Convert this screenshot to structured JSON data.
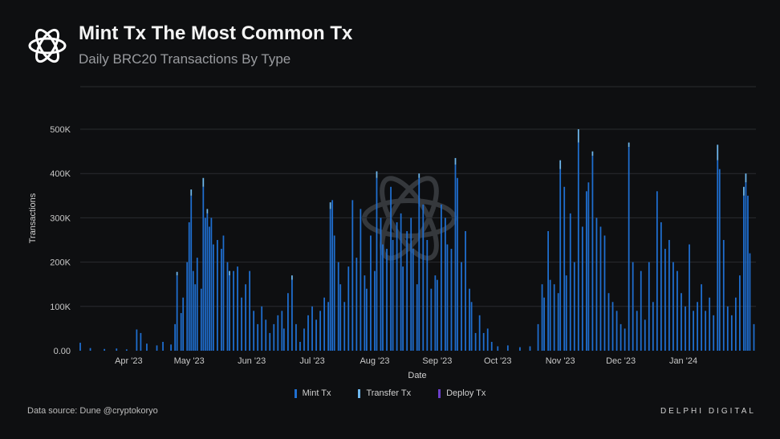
{
  "header": {
    "title": "Mint Tx The Most Common Tx",
    "subtitle": "Daily BRC20 Transactions By Type"
  },
  "footer": {
    "source": "Data source: Dune @cryptokoryo",
    "brand": "DELPHI DIGITAL"
  },
  "colors": {
    "background": "#0e0f11",
    "mint": "#1f6fd1",
    "transfer": "#6fb8ee",
    "deploy": "#6b3fc9",
    "grid": "#2a2c30",
    "text": "#c8c8c8"
  },
  "chart_data": {
    "type": "bar",
    "stacked": true,
    "xlabel": "Date",
    "ylabel": "Transactions",
    "ylim": [
      0,
      520000
    ],
    "ytick_values": [
      0,
      100000,
      200000,
      300000,
      400000,
      500000
    ],
    "ytick_labels": [
      "0.00",
      "100K",
      "200K",
      "300K",
      "400K",
      "500K"
    ],
    "xtick_labels": [
      "Apr '23",
      "May '23",
      "Jun '23",
      "Jul '23",
      "Aug '23",
      "Sep '23",
      "Oct '23",
      "Nov '23",
      "Dec '23",
      "Jan '24"
    ],
    "grid": true,
    "legend_position": "bottom",
    "x_range": [
      "2023-03-08",
      "2024-02-06"
    ],
    "series": [
      {
        "name": "Mint Tx",
        "color": "#1f6fd1",
        "points": [
          [
            "2023-03-08",
            18000
          ],
          [
            "2023-03-13",
            6000
          ],
          [
            "2023-03-20",
            4000
          ],
          [
            "2023-03-26",
            5000
          ],
          [
            "2023-03-31",
            3000
          ],
          [
            "2023-04-05",
            48000
          ],
          [
            "2023-04-07",
            40000
          ],
          [
            "2023-04-10",
            16000
          ],
          [
            "2023-04-15",
            12000
          ],
          [
            "2023-04-18",
            20000
          ],
          [
            "2023-04-22",
            14000
          ],
          [
            "2023-04-24",
            60000
          ],
          [
            "2023-04-25",
            170000
          ],
          [
            "2023-04-27",
            85000
          ],
          [
            "2023-04-28",
            120000
          ],
          [
            "2023-04-30",
            200000
          ],
          [
            "2023-05-01",
            290000
          ],
          [
            "2023-05-02",
            350000
          ],
          [
            "2023-05-03",
            180000
          ],
          [
            "2023-05-04",
            150000
          ],
          [
            "2023-05-05",
            210000
          ],
          [
            "2023-05-07",
            140000
          ],
          [
            "2023-05-08",
            370000
          ],
          [
            "2023-05-09",
            300000
          ],
          [
            "2023-05-10",
            310000
          ],
          [
            "2023-05-11",
            280000
          ],
          [
            "2023-05-12",
            300000
          ],
          [
            "2023-05-13",
            240000
          ],
          [
            "2023-05-15",
            250000
          ],
          [
            "2023-05-17",
            230000
          ],
          [
            "2023-05-18",
            260000
          ],
          [
            "2023-05-20",
            200000
          ],
          [
            "2023-05-21",
            170000
          ],
          [
            "2023-05-23",
            180000
          ],
          [
            "2023-05-25",
            190000
          ],
          [
            "2023-05-27",
            120000
          ],
          [
            "2023-05-29",
            150000
          ],
          [
            "2023-05-31",
            180000
          ],
          [
            "2023-06-02",
            90000
          ],
          [
            "2023-06-04",
            60000
          ],
          [
            "2023-06-06",
            100000
          ],
          [
            "2023-06-08",
            70000
          ],
          [
            "2023-06-10",
            40000
          ],
          [
            "2023-06-12",
            60000
          ],
          [
            "2023-06-14",
            80000
          ],
          [
            "2023-06-16",
            90000
          ],
          [
            "2023-06-17",
            50000
          ],
          [
            "2023-06-19",
            130000
          ],
          [
            "2023-06-21",
            160000
          ],
          [
            "2023-06-23",
            60000
          ],
          [
            "2023-06-25",
            20000
          ],
          [
            "2023-06-27",
            50000
          ],
          [
            "2023-06-29",
            80000
          ],
          [
            "2023-07-01",
            100000
          ],
          [
            "2023-07-03",
            70000
          ],
          [
            "2023-07-05",
            90000
          ],
          [
            "2023-07-07",
            120000
          ],
          [
            "2023-07-09",
            110000
          ],
          [
            "2023-07-10",
            320000
          ],
          [
            "2023-07-11",
            340000
          ],
          [
            "2023-07-12",
            260000
          ],
          [
            "2023-07-14",
            200000
          ],
          [
            "2023-07-15",
            150000
          ],
          [
            "2023-07-17",
            110000
          ],
          [
            "2023-07-19",
            190000
          ],
          [
            "2023-07-21",
            340000
          ],
          [
            "2023-07-23",
            210000
          ],
          [
            "2023-07-25",
            320000
          ],
          [
            "2023-07-27",
            170000
          ],
          [
            "2023-07-28",
            140000
          ],
          [
            "2023-07-30",
            260000
          ],
          [
            "2023-08-01",
            180000
          ],
          [
            "2023-08-02",
            390000
          ],
          [
            "2023-08-04",
            300000
          ],
          [
            "2023-08-05",
            240000
          ],
          [
            "2023-08-07",
            230000
          ],
          [
            "2023-08-09",
            370000
          ],
          [
            "2023-08-10",
            250000
          ],
          [
            "2023-08-12",
            290000
          ],
          [
            "2023-08-14",
            310000
          ],
          [
            "2023-08-15",
            190000
          ],
          [
            "2023-08-17",
            270000
          ],
          [
            "2023-08-19",
            300000
          ],
          [
            "2023-08-20",
            230000
          ],
          [
            "2023-08-22",
            150000
          ],
          [
            "2023-08-23",
            390000
          ],
          [
            "2023-08-25",
            330000
          ],
          [
            "2023-08-27",
            250000
          ],
          [
            "2023-08-29",
            140000
          ],
          [
            "2023-08-31",
            170000
          ],
          [
            "2023-09-01",
            160000
          ],
          [
            "2023-09-03",
            330000
          ],
          [
            "2023-09-05",
            300000
          ],
          [
            "2023-09-06",
            240000
          ],
          [
            "2023-09-08",
            230000
          ],
          [
            "2023-09-10",
            420000
          ],
          [
            "2023-09-11",
            390000
          ],
          [
            "2023-09-13",
            200000
          ],
          [
            "2023-09-15",
            270000
          ],
          [
            "2023-09-17",
            140000
          ],
          [
            "2023-09-18",
            110000
          ],
          [
            "2023-09-20",
            40000
          ],
          [
            "2023-09-22",
            80000
          ],
          [
            "2023-09-24",
            40000
          ],
          [
            "2023-09-26",
            50000
          ],
          [
            "2023-09-28",
            20000
          ],
          [
            "2023-10-01",
            10000
          ],
          [
            "2023-10-06",
            12000
          ],
          [
            "2023-10-12",
            8000
          ],
          [
            "2023-10-17",
            10000
          ],
          [
            "2023-10-21",
            60000
          ],
          [
            "2023-10-23",
            150000
          ],
          [
            "2023-10-24",
            120000
          ],
          [
            "2023-10-26",
            270000
          ],
          [
            "2023-10-27",
            160000
          ],
          [
            "2023-10-29",
            150000
          ],
          [
            "2023-10-31",
            130000
          ],
          [
            "2023-11-01",
            410000
          ],
          [
            "2023-11-03",
            370000
          ],
          [
            "2023-11-04",
            170000
          ],
          [
            "2023-11-06",
            310000
          ],
          [
            "2023-11-08",
            200000
          ],
          [
            "2023-11-10",
            470000
          ],
          [
            "2023-11-12",
            280000
          ],
          [
            "2023-11-14",
            360000
          ],
          [
            "2023-11-15",
            380000
          ],
          [
            "2023-11-17",
            440000
          ],
          [
            "2023-11-19",
            300000
          ],
          [
            "2023-11-21",
            280000
          ],
          [
            "2023-11-23",
            260000
          ],
          [
            "2023-11-25",
            130000
          ],
          [
            "2023-11-27",
            110000
          ],
          [
            "2023-11-29",
            90000
          ],
          [
            "2023-12-01",
            60000
          ],
          [
            "2023-12-03",
            50000
          ],
          [
            "2023-12-05",
            460000
          ],
          [
            "2023-12-07",
            200000
          ],
          [
            "2023-12-09",
            90000
          ],
          [
            "2023-12-11",
            180000
          ],
          [
            "2023-12-13",
            70000
          ],
          [
            "2023-12-15",
            200000
          ],
          [
            "2023-12-17",
            110000
          ],
          [
            "2023-12-19",
            360000
          ],
          [
            "2023-12-21",
            290000
          ],
          [
            "2023-12-23",
            230000
          ],
          [
            "2023-12-25",
            250000
          ],
          [
            "2023-12-27",
            200000
          ],
          [
            "2023-12-29",
            180000
          ],
          [
            "2023-12-31",
            130000
          ],
          [
            "2024-01-02",
            100000
          ],
          [
            "2024-01-04",
            240000
          ],
          [
            "2024-01-06",
            90000
          ],
          [
            "2024-01-08",
            110000
          ],
          [
            "2024-01-10",
            150000
          ],
          [
            "2024-01-12",
            90000
          ],
          [
            "2024-01-14",
            120000
          ],
          [
            "2024-01-16",
            80000
          ],
          [
            "2024-01-18",
            430000
          ],
          [
            "2024-01-19",
            410000
          ],
          [
            "2024-01-21",
            250000
          ],
          [
            "2024-01-23",
            100000
          ],
          [
            "2024-01-25",
            80000
          ],
          [
            "2024-01-27",
            120000
          ],
          [
            "2024-01-29",
            170000
          ],
          [
            "2024-01-31",
            350000
          ],
          [
            "2024-02-01",
            380000
          ],
          [
            "2024-02-02",
            350000
          ],
          [
            "2024-02-03",
            220000
          ],
          [
            "2024-02-05",
            60000
          ]
        ]
      },
      {
        "name": "Transfer Tx",
        "color": "#6fb8ee",
        "points": [
          [
            "2023-04-25",
            8000
          ],
          [
            "2023-05-02",
            14000
          ],
          [
            "2023-05-08",
            20000
          ],
          [
            "2023-05-10",
            10000
          ],
          [
            "2023-05-21",
            10000
          ],
          [
            "2023-06-21",
            10000
          ],
          [
            "2023-07-10",
            15000
          ],
          [
            "2023-08-02",
            15000
          ],
          [
            "2023-08-23",
            10000
          ],
          [
            "2023-09-10",
            15000
          ],
          [
            "2023-11-01",
            20000
          ],
          [
            "2023-11-10",
            30000
          ],
          [
            "2023-11-17",
            10000
          ],
          [
            "2023-12-05",
            10000
          ],
          [
            "2024-01-18",
            35000
          ],
          [
            "2024-01-31",
            20000
          ],
          [
            "2024-02-01",
            20000
          ]
        ]
      },
      {
        "name": "Deploy Tx",
        "color": "#6b3fc9",
        "points": []
      }
    ]
  }
}
